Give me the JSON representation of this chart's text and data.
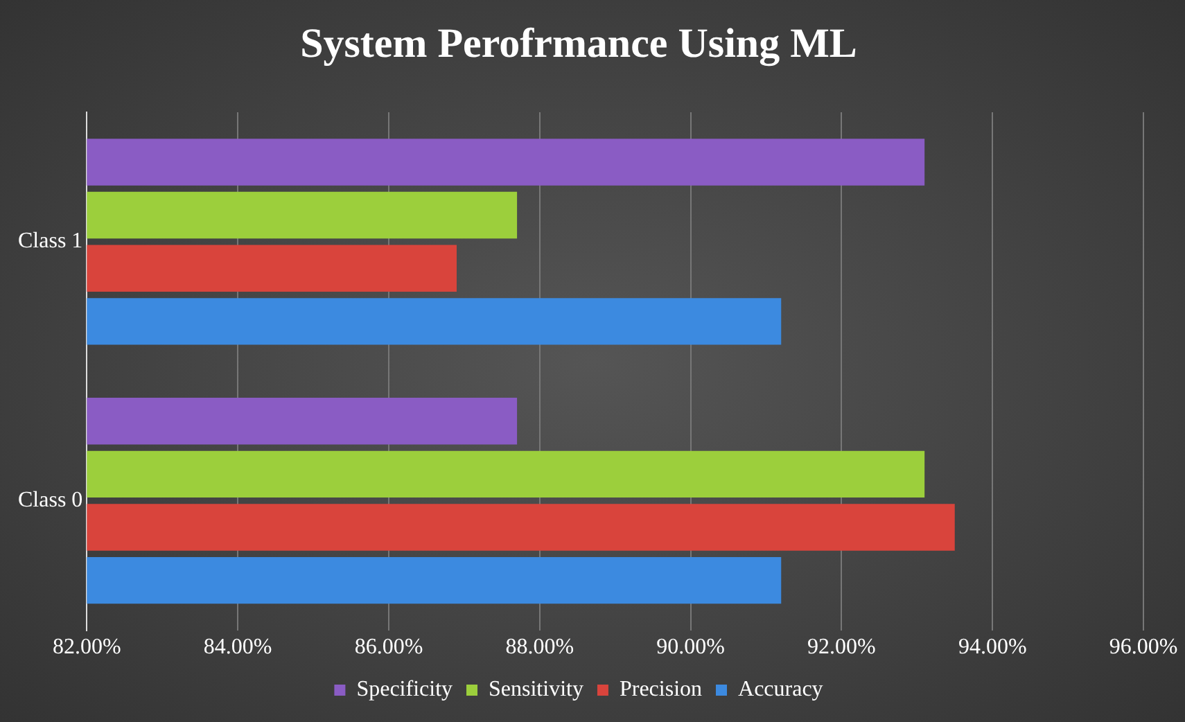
{
  "chart_data": {
    "type": "bar",
    "orientation": "horizontal",
    "title": "System Perofrmance Using ML",
    "categories": [
      "Class 1",
      "Class 0"
    ],
    "series": [
      {
        "name": "Specificity",
        "color": "#8a5cc4",
        "values": [
          93.1,
          87.7
        ]
      },
      {
        "name": "Sensitivity",
        "color": "#9ccf3c",
        "values": [
          87.7,
          93.1
        ]
      },
      {
        "name": "Precision",
        "color": "#d9443c",
        "values": [
          86.9,
          93.5
        ]
      },
      {
        "name": "Accuracy",
        "color": "#3c8ae0",
        "values": [
          91.2,
          91.2
        ]
      }
    ],
    "xlim": [
      82,
      96
    ],
    "xticks": [
      {
        "value": 82,
        "label": "82.00%"
      },
      {
        "value": 84,
        "label": "84.00%"
      },
      {
        "value": 86,
        "label": "86.00%"
      },
      {
        "value": 88,
        "label": "88.00%"
      },
      {
        "value": 90,
        "label": "90.00%"
      },
      {
        "value": 92,
        "label": "92.00%"
      },
      {
        "value": 94,
        "label": "94.00%"
      },
      {
        "value": 96,
        "label": "96.00%"
      }
    ],
    "grid": "x",
    "legend": "bottom"
  }
}
